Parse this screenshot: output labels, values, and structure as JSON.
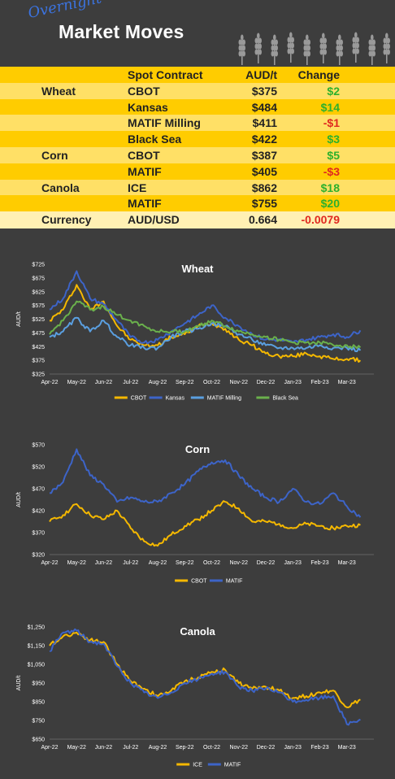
{
  "header": {
    "overnight": "Overnight",
    "title": "Market Moves"
  },
  "table": {
    "headers": {
      "contract": "Spot Contract",
      "price": "AUD/t",
      "change": "Change"
    },
    "rows": [
      {
        "group": "Wheat",
        "contract": "CBOT",
        "price": "$375",
        "change": "$2",
        "dir": "pos"
      },
      {
        "group": "",
        "contract": "Kansas",
        "price": "$484",
        "change": "$14",
        "dir": "pos"
      },
      {
        "group": "",
        "contract": "MATIF Milling",
        "price": "$411",
        "change": "-$1",
        "dir": "neg"
      },
      {
        "group": "",
        "contract": "Black Sea",
        "price": "$422",
        "change": "$3",
        "dir": "pos"
      },
      {
        "group": "Corn",
        "contract": "CBOT",
        "price": "$387",
        "change": "$5",
        "dir": "pos"
      },
      {
        "group": "",
        "contract": "MATIF",
        "price": "$405",
        "change": "-$3",
        "dir": "neg"
      },
      {
        "group": "Canola",
        "contract": "ICE",
        "price": "$862",
        "change": "$18",
        "dir": "pos"
      },
      {
        "group": "",
        "contract": "MATIF",
        "price": "$755",
        "change": "$20",
        "dir": "pos"
      },
      {
        "group": "Currency",
        "contract": "AUD/USD",
        "price": "0.664",
        "change": "-0.0079",
        "dir": "neg"
      }
    ]
  },
  "chart_data": [
    {
      "type": "line",
      "title": "Wheat",
      "ylabel": "AUD/t",
      "ylim": [
        325,
        725
      ],
      "yticks": [
        "$725",
        "$675",
        "$625",
        "$575",
        "$525",
        "$475",
        "$425",
        "$375",
        "$325"
      ],
      "xticks": [
        "Apr-22",
        "May-22",
        "Jun-22",
        "Jul-22",
        "Aug-22",
        "Sep-22",
        "Oct-22",
        "Nov-22",
        "Dec-22",
        "Jan-23",
        "Feb-23",
        "Mar-23"
      ],
      "x": [
        0,
        0.5,
        1,
        1.5,
        2,
        2.5,
        3,
        3.5,
        4,
        4.5,
        5,
        5.5,
        6,
        6.5,
        7,
        7.5,
        8,
        8.5,
        9,
        9.5,
        10,
        10.5,
        11,
        11.5
      ],
      "series": [
        {
          "name": "CBOT",
          "color": "#f5b800",
          "values": [
            520,
            560,
            650,
            560,
            590,
            500,
            450,
            430,
            430,
            460,
            470,
            500,
            510,
            490,
            450,
            430,
            400,
            390,
            390,
            400,
            390,
            380,
            380,
            375
          ]
        },
        {
          "name": "Kansas",
          "color": "#3d64c8",
          "values": [
            560,
            600,
            700,
            600,
            580,
            520,
            460,
            440,
            450,
            480,
            510,
            540,
            575,
            530,
            500,
            470,
            450,
            450,
            440,
            450,
            460,
            470,
            460,
            484
          ]
        },
        {
          "name": "MATIF Milling",
          "color": "#5a9fe0",
          "values": [
            460,
            480,
            530,
            480,
            520,
            460,
            430,
            420,
            420,
            460,
            480,
            490,
            510,
            500,
            470,
            450,
            430,
            420,
            420,
            420,
            430,
            420,
            420,
            411
          ]
        },
        {
          "name": "Black Sea",
          "color": "#6ab04c",
          "values": [
            470,
            520,
            590,
            560,
            570,
            540,
            520,
            500,
            480,
            480,
            480,
            500,
            520,
            500,
            480,
            470,
            460,
            450,
            440,
            440,
            440,
            430,
            430,
            422
          ]
        }
      ],
      "legend": "bottom"
    },
    {
      "type": "line",
      "title": "Corn",
      "ylabel": "AUD/t",
      "ylim": [
        320,
        570
      ],
      "yticks": [
        "$570",
        "$520",
        "$470",
        "$420",
        "$370",
        "$320"
      ],
      "xticks": [
        "Apr-22",
        "May-22",
        "Jun-22",
        "Jul-22",
        "Aug-22",
        "Sep-22",
        "Oct-22",
        "Nov-22",
        "Dec-22",
        "Jan-23",
        "Feb-23",
        "Mar-23"
      ],
      "x": [
        0,
        0.5,
        1,
        1.5,
        2,
        2.5,
        3,
        3.5,
        4,
        4.5,
        5,
        5.5,
        6,
        6.5,
        7,
        7.5,
        8,
        8.5,
        9,
        9.5,
        10,
        10.5,
        11,
        11.5
      ],
      "series": [
        {
          "name": "CBOT",
          "color": "#f5b800",
          "values": [
            395,
            410,
            435,
            410,
            400,
            420,
            380,
            350,
            340,
            365,
            385,
            400,
            420,
            440,
            425,
            395,
            395,
            390,
            380,
            390,
            385,
            380,
            385,
            387
          ]
        },
        {
          "name": "MATIF",
          "color": "#3d64c8",
          "values": [
            460,
            485,
            560,
            500,
            480,
            440,
            450,
            440,
            440,
            460,
            480,
            510,
            530,
            535,
            500,
            470,
            450,
            440,
            470,
            440,
            435,
            460,
            430,
            405
          ]
        }
      ],
      "legend": "bottom"
    },
    {
      "type": "line",
      "title": "Canola",
      "ylabel": "AUD/t",
      "ylim": [
        650,
        1250
      ],
      "yticks": [
        "$1,250",
        "$1,150",
        "$1,050",
        "$950",
        "$850",
        "$750",
        "$650"
      ],
      "xticks": [
        "Apr-22",
        "May-22",
        "Jun-22",
        "Jul-22",
        "Aug-22",
        "Sep-22",
        "Oct-22",
        "Nov-22",
        "Dec-22",
        "Jan-23",
        "Feb-23",
        "Mar-23"
      ],
      "x": [
        0,
        0.5,
        1,
        1.5,
        2,
        2.5,
        3,
        3.5,
        4,
        4.5,
        5,
        5.5,
        6,
        6.5,
        7,
        7.5,
        8,
        8.5,
        9,
        9.5,
        10,
        10.5,
        11,
        11.5
      ],
      "series": [
        {
          "name": "ICE",
          "color": "#f5b800",
          "values": [
            1150,
            1200,
            1220,
            1180,
            1170,
            1050,
            960,
            920,
            880,
            910,
            960,
            980,
            1010,
            1020,
            950,
            920,
            930,
            910,
            870,
            880,
            900,
            910,
            820,
            862
          ]
        },
        {
          "name": "MATIF",
          "color": "#3d64c8",
          "values": [
            1120,
            1220,
            1230,
            1170,
            1160,
            1040,
            950,
            900,
            870,
            900,
            950,
            970,
            1000,
            1010,
            930,
            910,
            920,
            900,
            850,
            860,
            870,
            880,
            730,
            755
          ]
        }
      ],
      "legend": "bottom"
    }
  ]
}
